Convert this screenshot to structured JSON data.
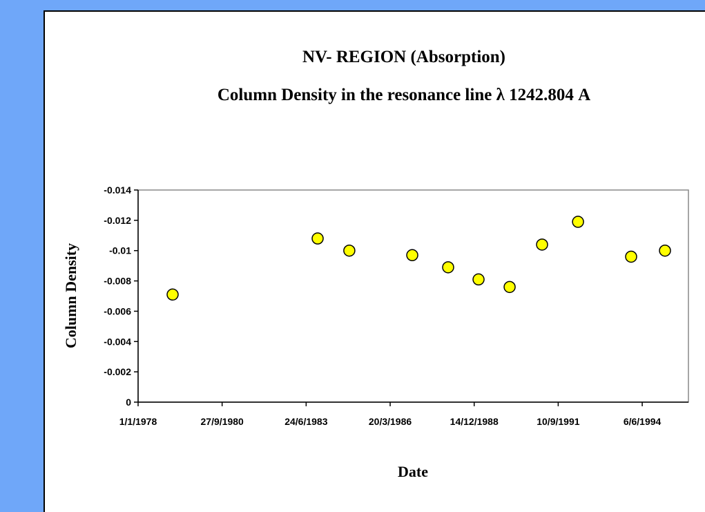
{
  "chart_data": {
    "type": "scatter",
    "title": "NV- REGION (Absorption)",
    "subtitle": "Column Density in the resonance line λ 1242.804 A",
    "x_label": "Date",
    "y_label": "Column Density",
    "x": [
      "1979-02-16",
      "1983-11-08",
      "1984-11-19",
      "1986-12-08",
      "1988-02-08",
      "1989-02-04",
      "1990-02-09",
      "1991-03-02",
      "1992-05-03",
      "1994-01-25",
      "1995-03-04"
    ],
    "series": [
      {
        "name": "Column Density",
        "color": "#ffff00",
        "values": [
          -0.0071,
          -0.0108,
          -0.01,
          -0.0097,
          -0.0089,
          -0.0081,
          -0.0076,
          -0.0104,
          -0.0119,
          -0.0096,
          -0.01
        ]
      }
    ],
    "xlim": [
      "1978-01-01",
      "1995-12-08"
    ],
    "xticks": [
      {
        "value": "1978-01-01",
        "label": "1/1/1978"
      },
      {
        "value": "1980-09-27",
        "label": "27/9/1980"
      },
      {
        "value": "1983-06-24",
        "label": "24/6/1983"
      },
      {
        "value": "1986-03-20",
        "label": "20/3/1986"
      },
      {
        "value": "1988-12-14",
        "label": "14/12/1988"
      },
      {
        "value": "1991-09-10",
        "label": "10/9/1991"
      },
      {
        "value": "1994-06-06",
        "label": "6/6/1994"
      }
    ],
    "ylim": [
      0,
      -0.014
    ],
    "yticks": [
      0,
      -0.002,
      -0.004,
      -0.006,
      -0.008,
      -0.01,
      -0.012,
      -0.014
    ]
  }
}
